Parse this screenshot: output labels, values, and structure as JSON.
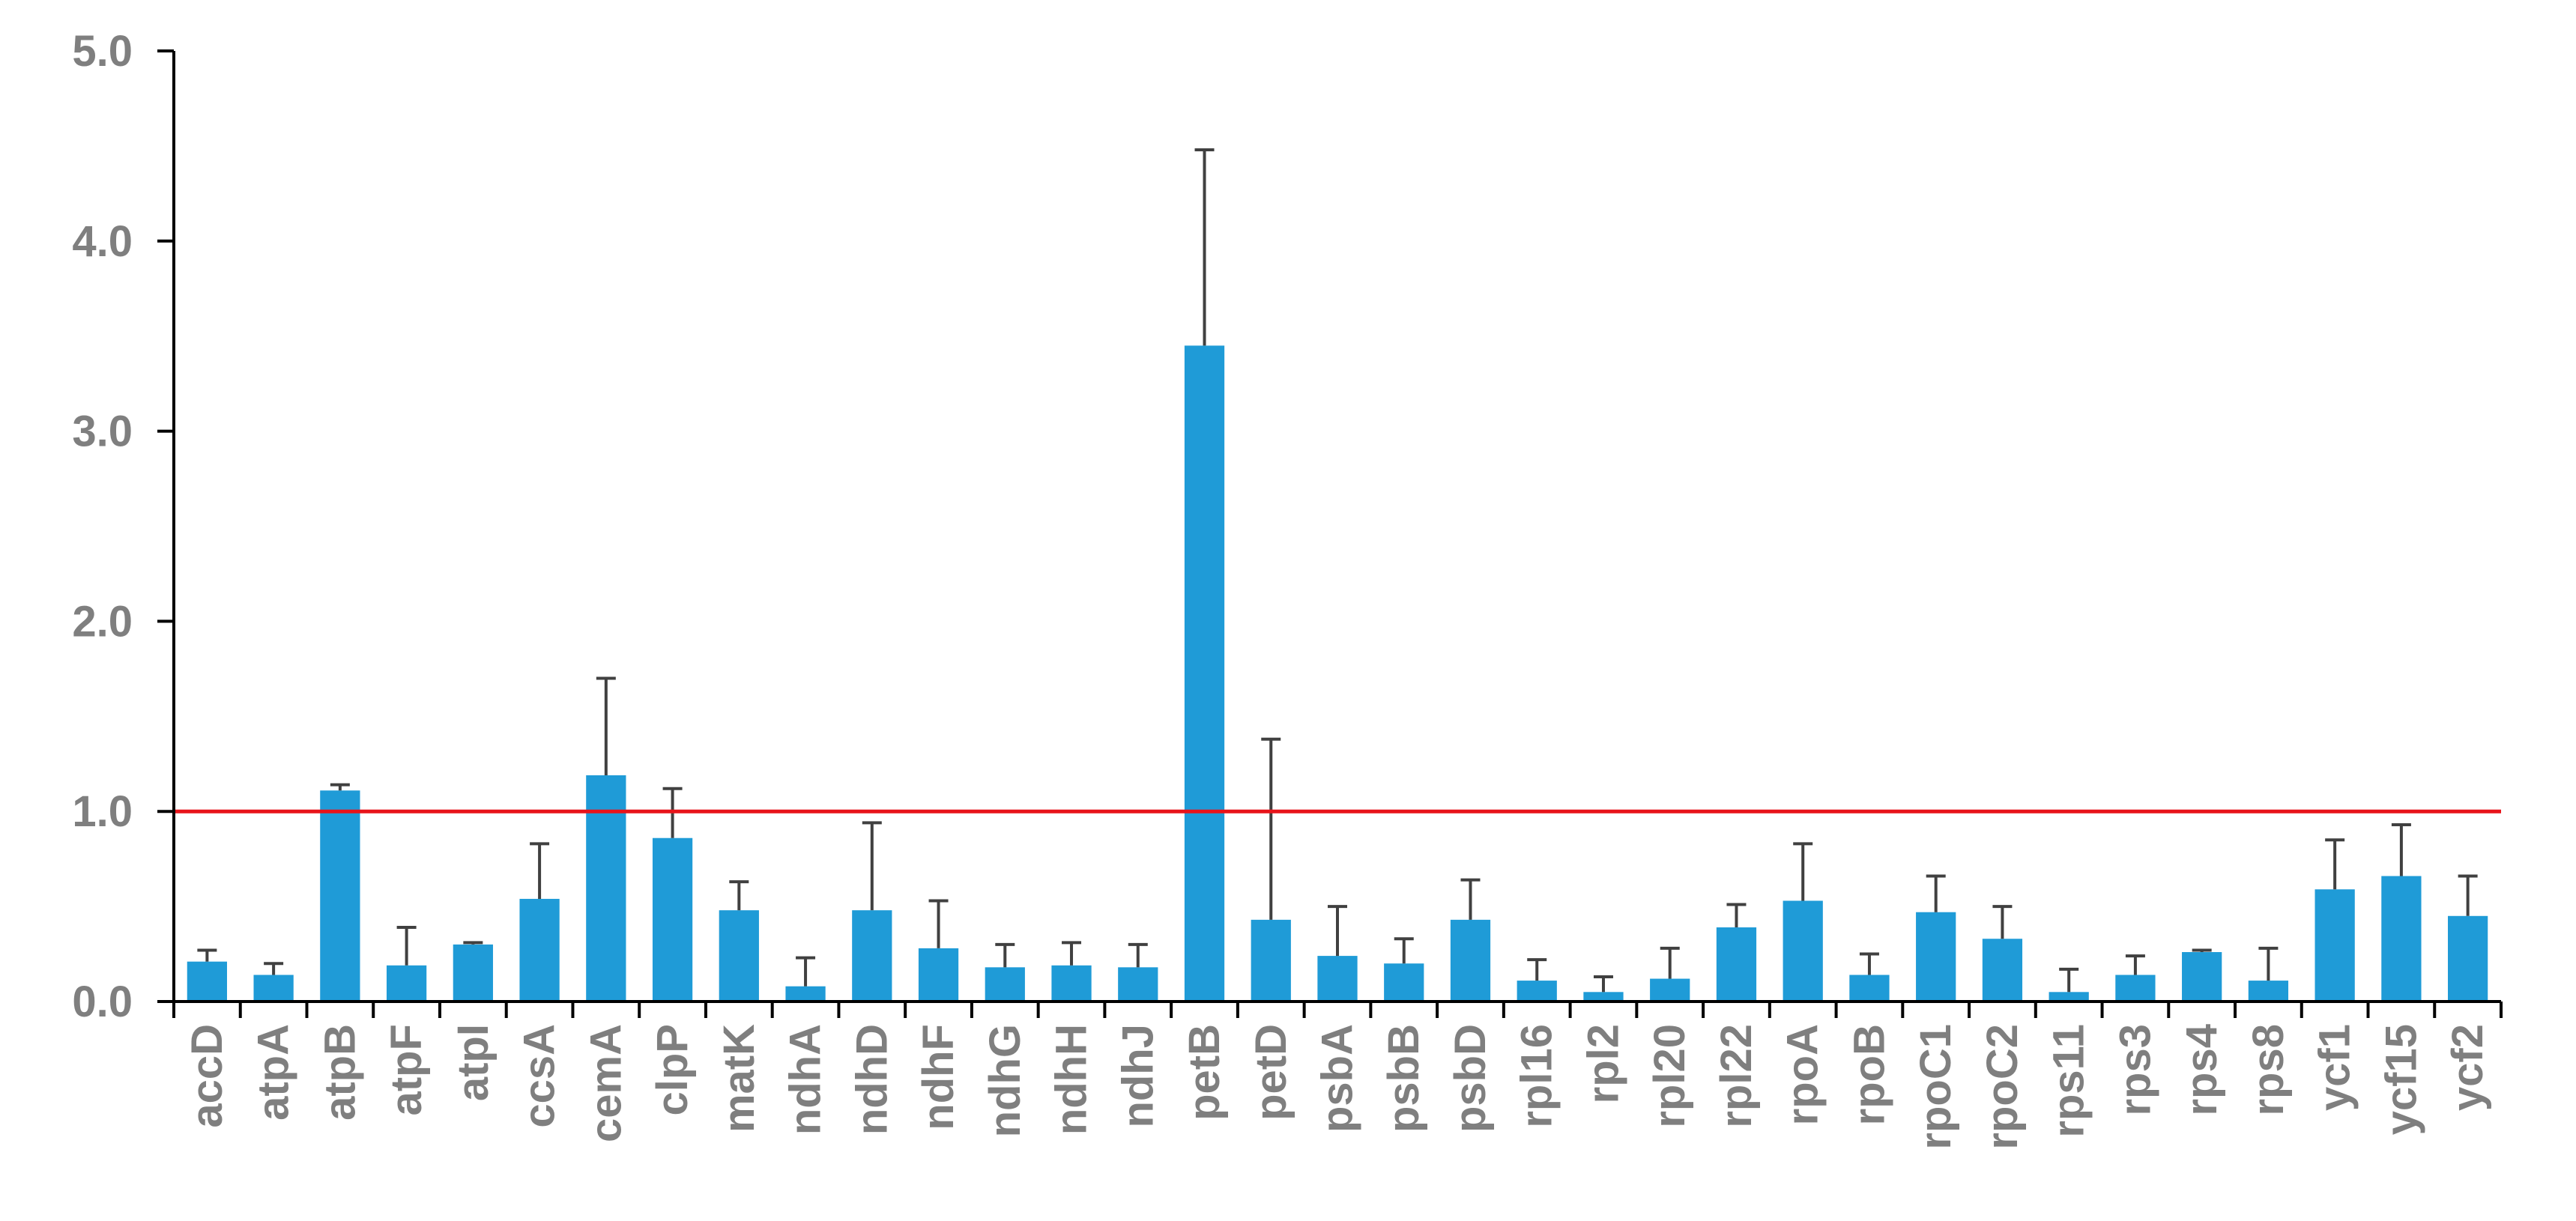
{
  "chart_data": {
    "type": "bar",
    "title": "",
    "xlabel": "",
    "ylabel": "",
    "ylim": [
      0,
      5
    ],
    "yticks": [
      "0.0",
      "1.0",
      "2.0",
      "3.0",
      "4.0",
      "5.0"
    ],
    "yticks_values": [
      0,
      1,
      2,
      3,
      4,
      5
    ],
    "grid": false,
    "legend": "none",
    "reference_line": 1.0,
    "categories": [
      "accD",
      "atpA",
      "atpB",
      "atpF",
      "atpI",
      "ccsA",
      "cemA",
      "clpP",
      "matK",
      "ndhA",
      "ndhD",
      "ndhF",
      "ndhG",
      "ndhH",
      "ndhJ",
      "petB",
      "petD",
      "psbA",
      "psbB",
      "psbD",
      "rpl16",
      "rpl2",
      "rpl20",
      "rpl22",
      "rpoA",
      "rpoB",
      "rpoC1",
      "rpoC2",
      "rps11",
      "rps3",
      "rps4",
      "rps8",
      "ycf1",
      "ycf15",
      "ycf2"
    ],
    "series": [
      {
        "values": [
          0.21,
          0.14,
          1.11,
          0.19,
          0.3,
          0.54,
          1.19,
          0.86,
          0.48,
          0.08,
          0.48,
          0.28,
          0.18,
          0.19,
          0.18,
          3.45,
          0.43,
          0.24,
          0.2,
          0.43,
          0.11,
          0.05,
          0.12,
          0.39,
          0.53,
          0.14,
          0.47,
          0.33,
          0.05,
          0.14,
          0.26,
          0.11,
          0.59,
          0.66,
          0.45
        ],
        "error_upper": [
          0.27,
          0.2,
          1.14,
          0.39,
          0.31,
          0.83,
          1.7,
          1.12,
          0.63,
          0.23,
          0.94,
          0.53,
          0.3,
          0.31,
          0.3,
          4.48,
          1.38,
          0.5,
          0.33,
          0.64,
          0.22,
          0.13,
          0.28,
          0.51,
          0.83,
          0.25,
          0.66,
          0.5,
          0.17,
          0.24,
          0.27,
          0.28,
          0.85,
          0.93,
          0.66
        ]
      }
    ],
    "colors": {
      "bar": "#1f9bd7",
      "error_bar": "#404040",
      "reference_line": "#e8141a",
      "axis": "#000000",
      "text": "#7f7f7f"
    }
  }
}
